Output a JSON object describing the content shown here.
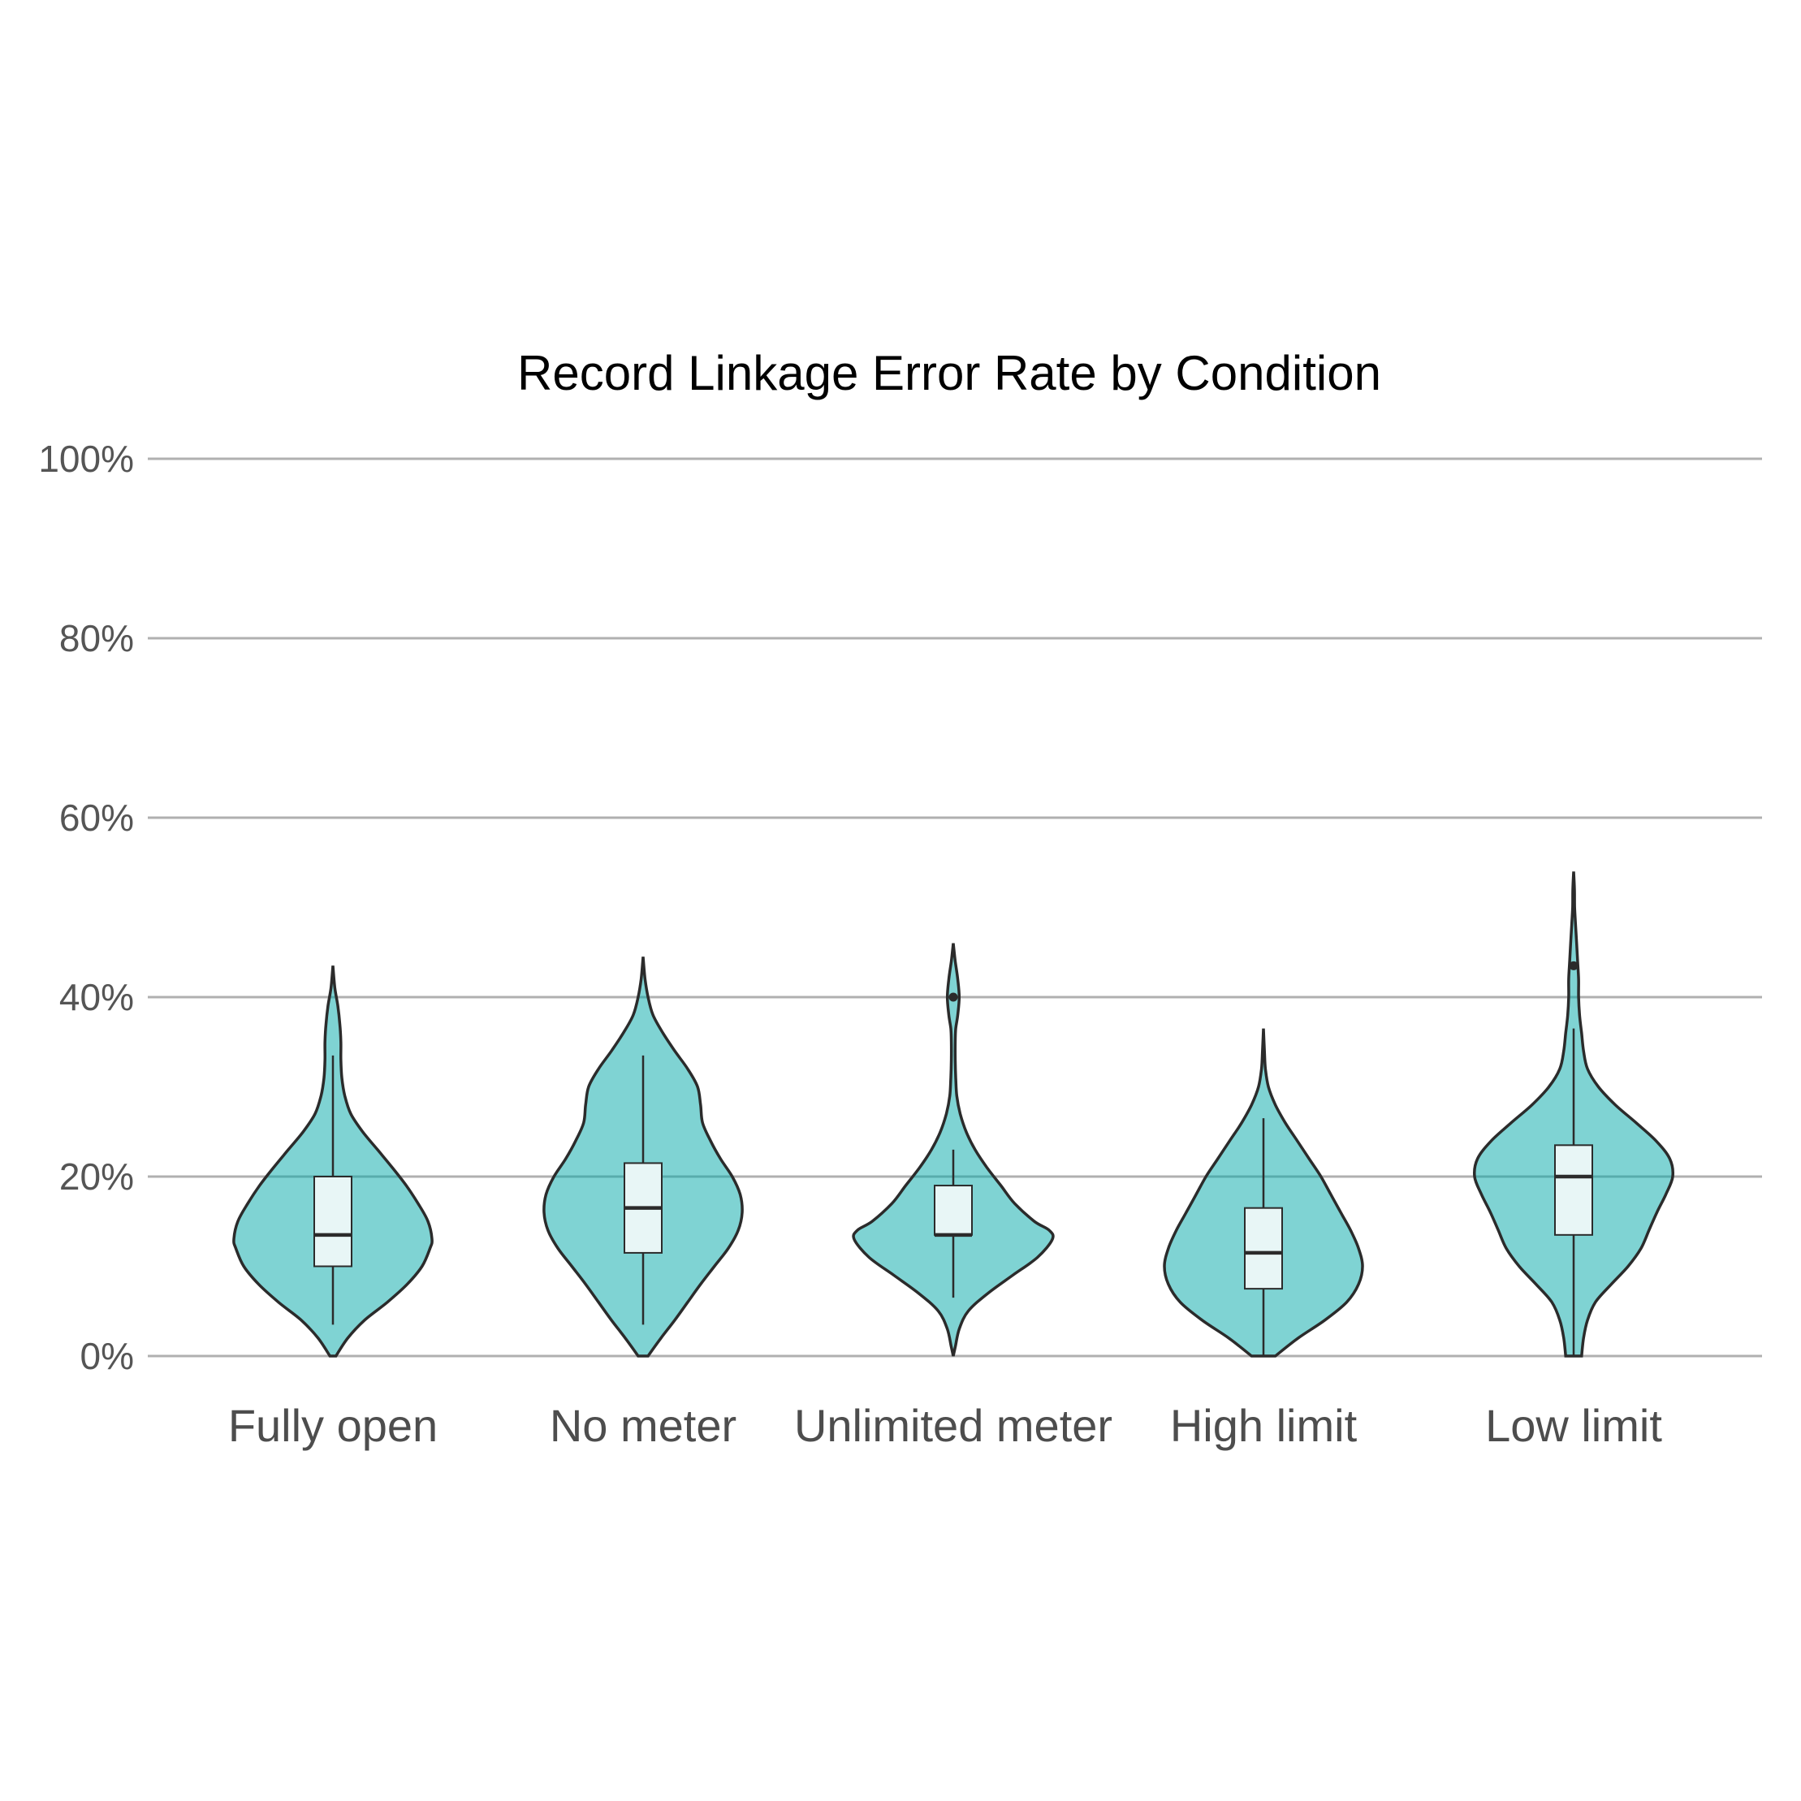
{
  "chart_data": {
    "type": "violin",
    "title": "Record Linkage Error Rate by Condition",
    "xlabel": "",
    "ylabel": "",
    "ylim": [
      0,
      100
    ],
    "yticks": [
      0,
      20,
      40,
      60,
      80,
      100
    ],
    "ytick_labels": [
      "0%",
      "20%",
      "40%",
      "60%",
      "80%",
      "100%"
    ],
    "grid": true,
    "colors": {
      "violin": "#00a8a8",
      "box": "#e8f6f6",
      "line": "#2b2b2b",
      "grid": "#b0b0b0"
    },
    "categories": [
      "Fully open",
      "No meter",
      "Unlimited meter",
      "High limit",
      "Low limit"
    ],
    "violins": [
      {
        "name": "Fully open",
        "box": {
          "q1": 10,
          "median": 13.5,
          "q3": 20,
          "whisker_low": 3.5,
          "whisker_high": 33.5
        },
        "outliers": [],
        "density_profile": [
          [
            0,
            0.03
          ],
          [
            2,
            0.15
          ],
          [
            4,
            0.32
          ],
          [
            6,
            0.55
          ],
          [
            8,
            0.75
          ],
          [
            10,
            0.9
          ],
          [
            12,
            0.98
          ],
          [
            13,
            1.0
          ],
          [
            15,
            0.96
          ],
          [
            17,
            0.86
          ],
          [
            19,
            0.74
          ],
          [
            21,
            0.6
          ],
          [
            23,
            0.45
          ],
          [
            25,
            0.3
          ],
          [
            27,
            0.18
          ],
          [
            29,
            0.12
          ],
          [
            31,
            0.09
          ],
          [
            33,
            0.08
          ],
          [
            35,
            0.08
          ],
          [
            37,
            0.07
          ],
          [
            39,
            0.05
          ],
          [
            41,
            0.02
          ],
          [
            43.5,
            0.0
          ]
        ]
      },
      {
        "name": "No meter",
        "box": {
          "q1": 11.5,
          "median": 16.5,
          "q3": 21.5,
          "whisker_low": 3.5,
          "whisker_high": 33.5
        },
        "outliers": [],
        "density_profile": [
          [
            0,
            0.05
          ],
          [
            2,
            0.18
          ],
          [
            4,
            0.32
          ],
          [
            6,
            0.45
          ],
          [
            8,
            0.58
          ],
          [
            10,
            0.72
          ],
          [
            12,
            0.86
          ],
          [
            14,
            0.96
          ],
          [
            16,
            1.0
          ],
          [
            18,
            0.98
          ],
          [
            20,
            0.9
          ],
          [
            22,
            0.78
          ],
          [
            24,
            0.68
          ],
          [
            26,
            0.6
          ],
          [
            28,
            0.58
          ],
          [
            30,
            0.55
          ],
          [
            32,
            0.45
          ],
          [
            34,
            0.32
          ],
          [
            36,
            0.2
          ],
          [
            38,
            0.1
          ],
          [
            40,
            0.05
          ],
          [
            42,
            0.02
          ],
          [
            44.5,
            0.0
          ]
        ]
      },
      {
        "name": "Unlimited meter",
        "box": {
          "q1": 13.5,
          "median": 13.5,
          "q3": 19,
          "whisker_low": 6.5,
          "whisker_high": 23
        },
        "outliers": [
          40
        ],
        "density_profile": [
          [
            0,
            0.0
          ],
          [
            1,
            0.02
          ],
          [
            3,
            0.06
          ],
          [
            5,
            0.15
          ],
          [
            7,
            0.35
          ],
          [
            9,
            0.6
          ],
          [
            11,
            0.85
          ],
          [
            13,
            1.0
          ],
          [
            14,
            0.97
          ],
          [
            15,
            0.82
          ],
          [
            17,
            0.62
          ],
          [
            19,
            0.48
          ],
          [
            21,
            0.34
          ],
          [
            23,
            0.22
          ],
          [
            25,
            0.13
          ],
          [
            27,
            0.07
          ],
          [
            29,
            0.035
          ],
          [
            31,
            0.025
          ],
          [
            33,
            0.02
          ],
          [
            35,
            0.02
          ],
          [
            36.5,
            0.025
          ],
          [
            38,
            0.045
          ],
          [
            40,
            0.06
          ],
          [
            42,
            0.045
          ],
          [
            44,
            0.02
          ],
          [
            46,
            0.0
          ]
        ]
      },
      {
        "name": "High limit",
        "box": {
          "q1": 7.5,
          "median": 11.5,
          "q3": 16.5,
          "whisker_low": 0,
          "whisker_high": 26.5
        },
        "outliers": [],
        "density_profile": [
          [
            0,
            0.12
          ],
          [
            2,
            0.35
          ],
          [
            4,
            0.62
          ],
          [
            6,
            0.84
          ],
          [
            8,
            0.96
          ],
          [
            10,
            1.0
          ],
          [
            12,
            0.96
          ],
          [
            14,
            0.88
          ],
          [
            16,
            0.78
          ],
          [
            18,
            0.68
          ],
          [
            20,
            0.58
          ],
          [
            22,
            0.46
          ],
          [
            24,
            0.34
          ],
          [
            26,
            0.22
          ],
          [
            28,
            0.12
          ],
          [
            30,
            0.05
          ],
          [
            32,
            0.02
          ],
          [
            34,
            0.01
          ],
          [
            36.5,
            0.0
          ]
        ]
      },
      {
        "name": "Low limit",
        "box": {
          "q1": 13.5,
          "median": 20,
          "q3": 23.5,
          "whisker_low": 0,
          "whisker_high": 36.5
        },
        "outliers": [
          43.5
        ],
        "density_profile": [
          [
            0,
            0.08
          ],
          [
            2,
            0.1
          ],
          [
            4,
            0.14
          ],
          [
            6,
            0.22
          ],
          [
            8,
            0.38
          ],
          [
            10,
            0.55
          ],
          [
            12,
            0.68
          ],
          [
            14,
            0.76
          ],
          [
            16,
            0.84
          ],
          [
            18,
            0.93
          ],
          [
            20,
            1.0
          ],
          [
            22,
            0.97
          ],
          [
            24,
            0.83
          ],
          [
            26,
            0.63
          ],
          [
            28,
            0.42
          ],
          [
            30,
            0.25
          ],
          [
            32,
            0.14
          ],
          [
            34,
            0.1
          ],
          [
            36,
            0.08
          ],
          [
            38,
            0.06
          ],
          [
            40,
            0.05
          ],
          [
            42,
            0.05
          ],
          [
            44,
            0.04
          ],
          [
            46,
            0.03
          ],
          [
            48,
            0.02
          ],
          [
            50,
            0.01
          ],
          [
            52,
            0.008
          ],
          [
            54,
            0.0
          ]
        ]
      }
    ]
  }
}
